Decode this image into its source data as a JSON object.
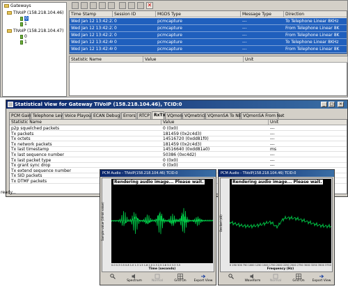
{
  "gateways": {
    "title": "Gateways",
    "items": [
      {
        "label": "TIVoIP (158.218.104.46)",
        "children": [
          "0",
          "1"
        ]
      },
      {
        "label": "TIVoIP (158.218.104.47)",
        "children": [
          "0",
          "1"
        ]
      }
    ]
  },
  "sessions": {
    "columns": [
      "Time Stamp",
      "Session ID",
      "MGDS Type",
      "Message Type",
      "Direction"
    ],
    "rows": [
      [
        "Wed Jan 12 13:42:22...",
        "0",
        "pcmcapture",
        "---",
        "To Telephone Linear 8KHz"
      ],
      [
        "Wed Jan 12 13:42:22...",
        "0",
        "pcmcapture",
        "---",
        "From Telephone Linear 8K"
      ],
      [
        "Wed Jan 12 13:42:22...",
        "0",
        "pcmcapture",
        "---",
        "From Telephone Linear 8K"
      ],
      [
        "Wed Jan 12 13:42:40...",
        "0",
        "pcmcapture",
        "---",
        "To Telephone Linear 8KHz"
      ],
      [
        "Wed Jan 12 13:42:40...",
        "0",
        "pcmcapture",
        "---",
        "From Telephone Linear 8K"
      ],
      [
        "Wed Jan 12 13:42:40...",
        "0",
        "pcmcapture",
        "---",
        "From Telephone Linear 8K"
      ]
    ]
  },
  "stat_columns_top": [
    "Statistic Name",
    "Value",
    "Unit"
  ],
  "stat_window": {
    "title": "Statistical View for Gateway TIVoIP (158.218.104.46), TCID:0",
    "tabs": [
      "PCM Gain",
      "Telephone Levels",
      "Voice Playout",
      "ECAN Debug",
      "Errors",
      "RTCP",
      "RxTx",
      "VQmon",
      "VQmetrics",
      "VQmonSA To NET",
      "VQmonSA From Net"
    ],
    "active_tab": "RxTx",
    "columns": [
      "Statistic Name",
      "Value",
      "Unit"
    ],
    "rows": [
      [
        "p2p squelched packets",
        "0  (0x0)",
        "---"
      ],
      [
        "Tx packets",
        "181459  (0x2c4d3)",
        "---"
      ],
      [
        "Tx octets",
        "14516720  (0xdd81f0)",
        "---"
      ],
      [
        "Tx network packets",
        "181459  (0x2c4d3)",
        "---"
      ],
      [
        "Tx last timestamp",
        "14516640  (0xdd81a0)",
        "ms"
      ],
      [
        "Tx last sequence number",
        "50386  (0xc4d2)",
        "---"
      ],
      [
        "Tx last packet type",
        "0  (0x0)",
        "---"
      ],
      [
        "Tx grant sync drop",
        "0  (0x0)",
        "---"
      ],
      [
        "Tx extend sequence number",
        "",
        ""
      ],
      [
        "Tx SID packets",
        "",
        ""
      ],
      [
        "Tx DTMF packets",
        "",
        ""
      ]
    ],
    "status": "ready..."
  },
  "pcm_left": {
    "title": "PCM Audio - TIVoIP(158.218.104.46) TCID:0",
    "rendering": "Rendering audio image...  Please wait.",
    "ylabel": "Sample value (16-bit value)",
    "xlabel": "Time (seconds)",
    "xticks": "0.0  0.3  0.5  0.8  1.0  1.3  1.5  1.8  2.0  2.3  2.5  2.8  3.0  3.3  3.5",
    "tools": [
      "",
      "Spectrum",
      "Normal",
      "Grid On",
      "Export View"
    ],
    "tool_enabled": [
      true,
      true,
      false,
      true,
      true
    ]
  },
  "pcm_right": {
    "title": "PCM Audio - TIVoIP(158.218.104.46) TCID:0",
    "rendering": "Rendering audio image...  Please wait.",
    "ylabel": "Decibel (dB)",
    "xlabel": "Frequency (Hz)",
    "xticks": "0  250  500  750  1000  1250  1500  1750  2000  2250  2500  2750  3000  3250  3500  3750",
    "tools": [
      "",
      "Waveform",
      "Normal",
      "Grid On",
      "Export View"
    ],
    "tool_enabled": [
      true,
      true,
      false,
      true,
      true
    ]
  },
  "colors": {
    "selection": "#1f5fbd",
    "title_bar": "#0a246a",
    "plot_bg": "#000000",
    "trace": "#00d24a"
  },
  "icons": [
    "gateway-folder-icon",
    "channel-icon",
    "toolbar-icon",
    "delete-icon",
    "magnifier-icon",
    "speaker-icon",
    "grid-icon",
    "export-icon"
  ]
}
